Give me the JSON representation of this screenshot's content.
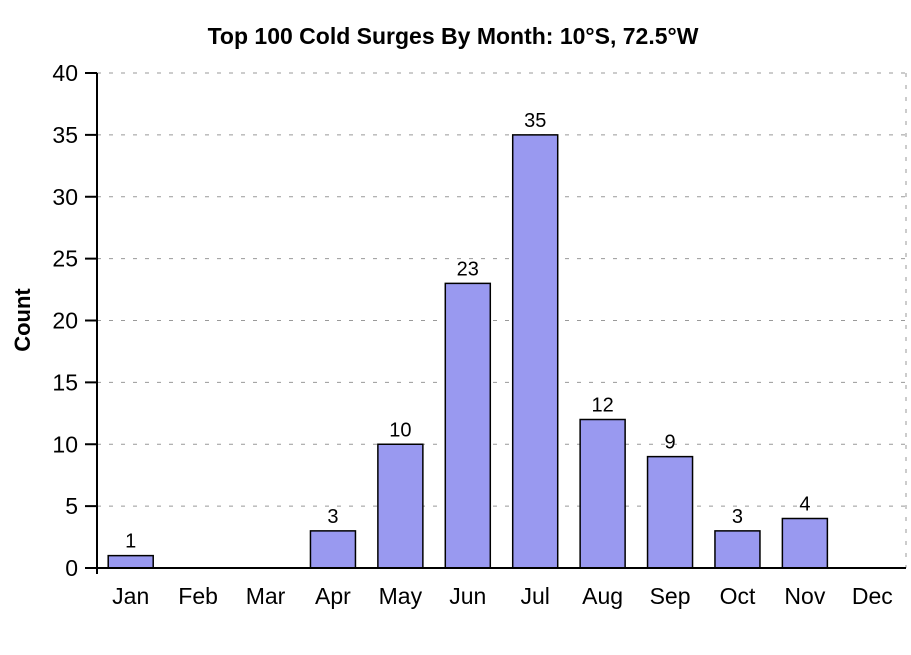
{
  "page": {
    "background": "#ffffff"
  },
  "chart_data": {
    "type": "bar",
    "title": "Top 100 Cold Surges By Month: 10°S, 72.5°W",
    "xlabel": "",
    "ylabel": "Count",
    "categories": [
      "Jan",
      "Feb",
      "Mar",
      "Apr",
      "May",
      "Jun",
      "Jul",
      "Aug",
      "Sep",
      "Oct",
      "Nov",
      "Dec"
    ],
    "values": [
      1,
      0,
      0,
      3,
      10,
      23,
      35,
      12,
      9,
      3,
      4,
      0
    ],
    "ylim": [
      0,
      40
    ],
    "yticks": [
      0,
      5,
      10,
      15,
      20,
      25,
      30,
      35,
      40
    ],
    "grid": {
      "horizontal": true,
      "vertical": false,
      "style": "dashed",
      "at_every": 5
    },
    "legend": "none",
    "data_labels": "shown above non-zero bars",
    "colors": {
      "bar_fill": "#9999f0",
      "bar_border": "#000000",
      "gridline": "#999999",
      "axis": "#000000",
      "text": "#000000",
      "background": "#ffffff"
    }
  }
}
